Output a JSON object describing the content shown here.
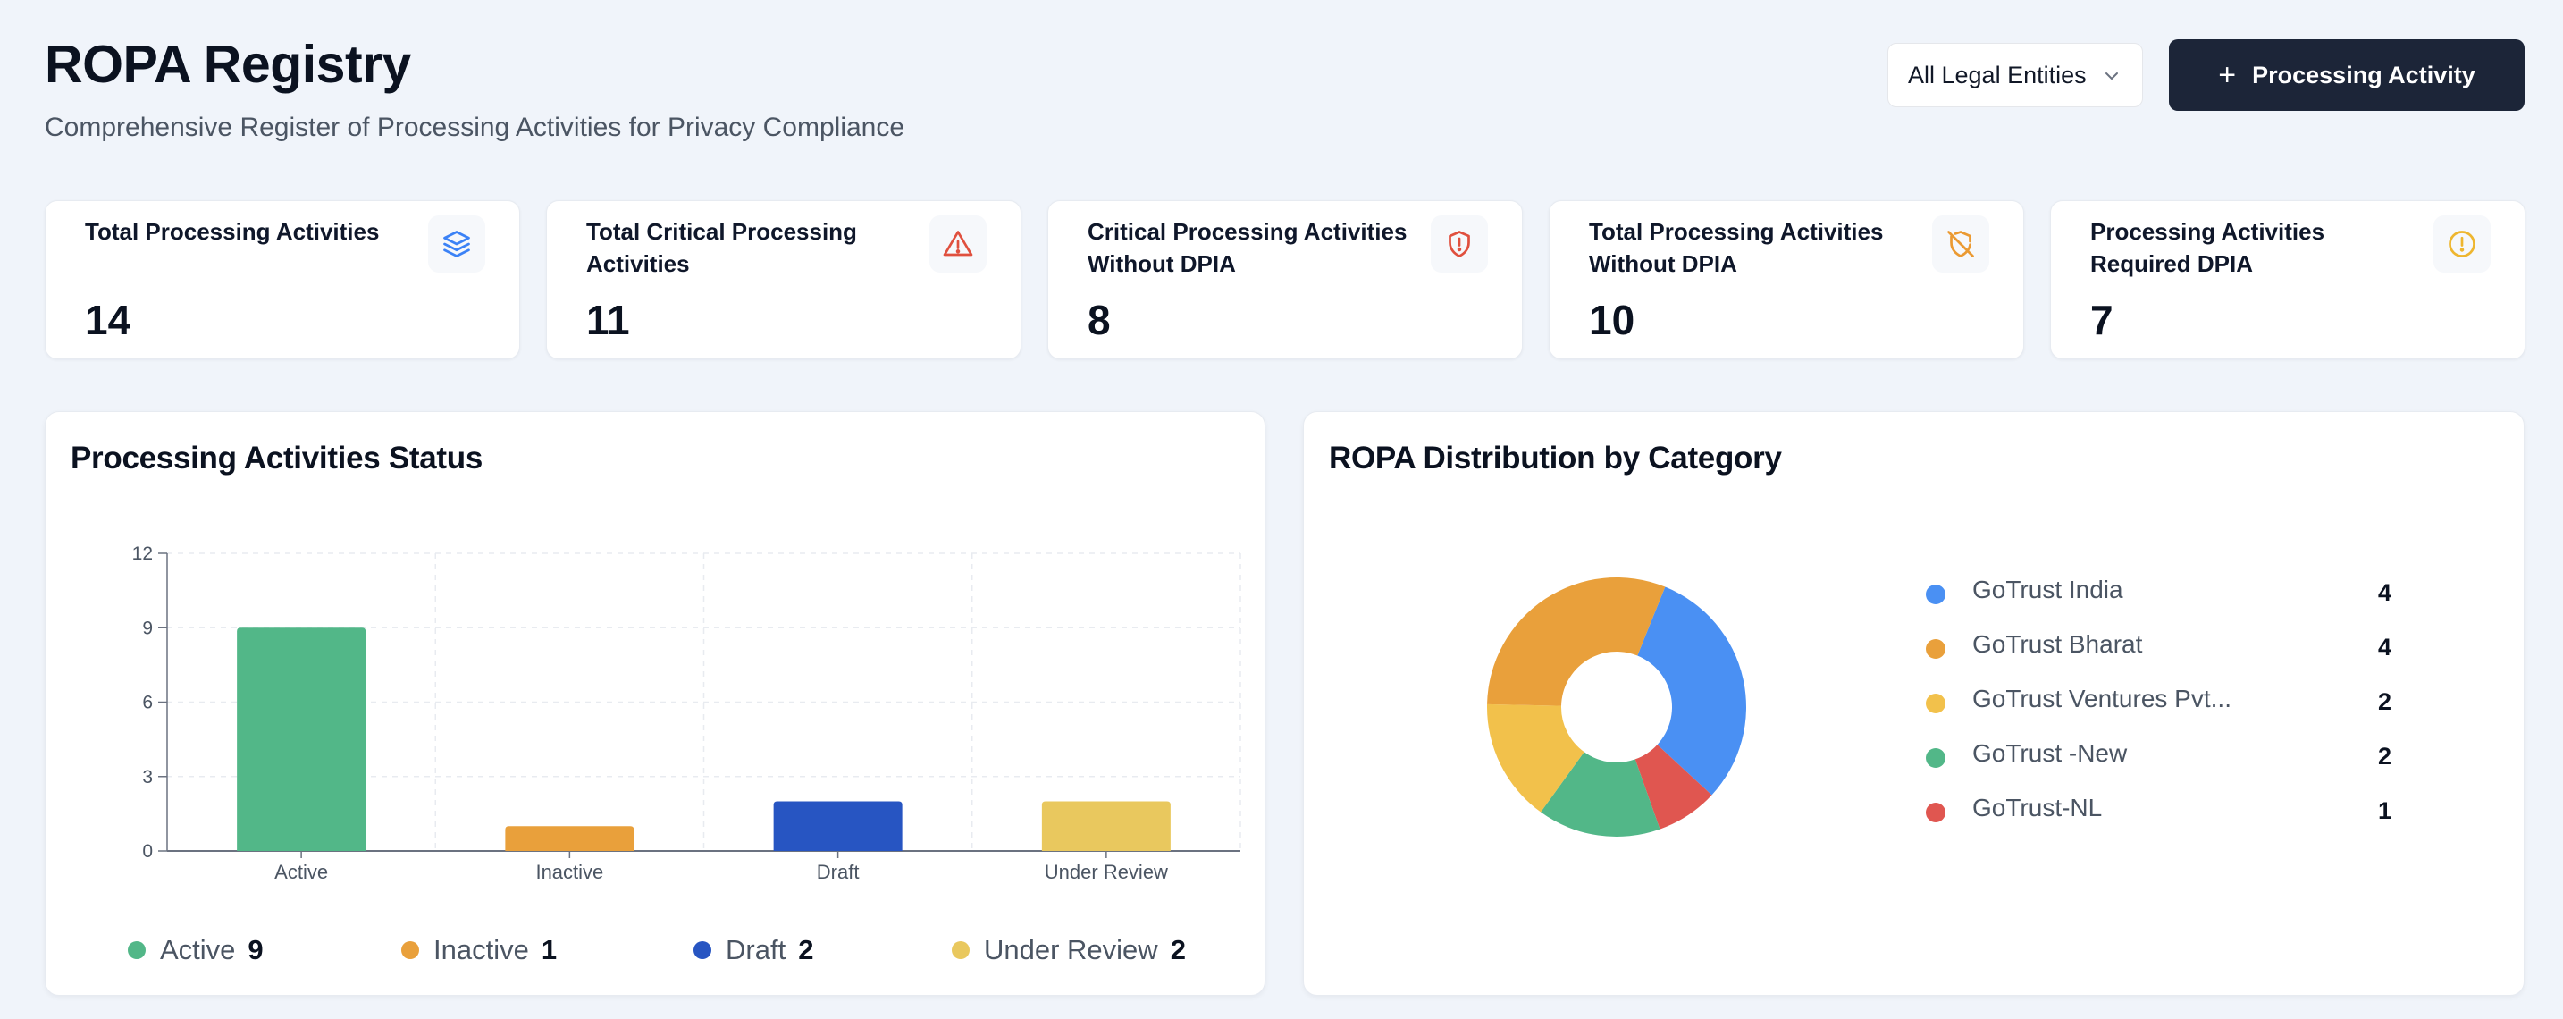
{
  "header": {
    "title": "ROPA Registry",
    "subtitle": "Comprehensive Register of Processing Activities for Privacy Compliance",
    "entity_filter": "All Legal Entities",
    "add_button_label": "Processing Activity"
  },
  "stats": [
    {
      "label": "Total Processing Activities",
      "value": "14",
      "icon": "layers-icon",
      "color": "#3b82f6"
    },
    {
      "label": "Total Critical Processing Activities",
      "value": "11",
      "icon": "alert-triangle-icon",
      "color": "#e0503e"
    },
    {
      "label": "Critical Processing Activities Without DPIA",
      "value": "8",
      "icon": "shield-alert-icon",
      "color": "#e0503e"
    },
    {
      "label": "Total Processing Activities Without DPIA",
      "value": "10",
      "icon": "shield-off-icon",
      "color": "#eb9a32"
    },
    {
      "label": "Processing Activities Required DPIA",
      "value": "7",
      "icon": "alert-circle-icon",
      "color": "#eeb62f"
    }
  ],
  "status_panel": {
    "title": "Processing Activities Status",
    "legend": [
      {
        "label": "Active",
        "count": "9",
        "color": "#52b788"
      },
      {
        "label": "Inactive",
        "count": "1",
        "color": "#e9a03b"
      },
      {
        "label": "Draft",
        "count": "2",
        "color": "#2755c2"
      },
      {
        "label": "Under Review",
        "count": "2",
        "color": "#e9c85e"
      }
    ]
  },
  "category_panel": {
    "title": "ROPA Distribution by Category",
    "items": [
      {
        "label": "GoTrust India",
        "count": "4",
        "color": "#4a90f3"
      },
      {
        "label": "GoTrust Bharat",
        "count": "4",
        "color": "#e9a03b"
      },
      {
        "label": "GoTrust Ventures Pvt...",
        "count": "2",
        "color": "#f2c14b"
      },
      {
        "label": "GoTrust -New",
        "count": "2",
        "color": "#52b788"
      },
      {
        "label": "GoTrust-NL",
        "count": "1",
        "color": "#e05650"
      }
    ]
  },
  "chart_data": [
    {
      "type": "bar",
      "title": "Processing Activities Status",
      "categories": [
        "Active",
        "Inactive",
        "Draft",
        "Under Review"
      ],
      "values": [
        9,
        1,
        2,
        2
      ],
      "colors": [
        "#52b788",
        "#e9a03b",
        "#2755c2",
        "#e9c85e"
      ],
      "ylim": [
        0,
        12
      ],
      "yticks": [
        "0",
        "3",
        "6",
        "9",
        "12"
      ],
      "grid": true
    },
    {
      "type": "pie",
      "title": "ROPA Distribution by Category",
      "labels": [
        "GoTrust India",
        "GoTrust -NL",
        "GoTrust -New",
        "GoTrust Ventures Pvt...",
        "GoTrust Bharat"
      ],
      "values": [
        4,
        1,
        2,
        2,
        4
      ],
      "colors": [
        "#4a90f3",
        "#e05650",
        "#52b788",
        "#f2c14b",
        "#e9a03b"
      ],
      "donut": true
    }
  ]
}
